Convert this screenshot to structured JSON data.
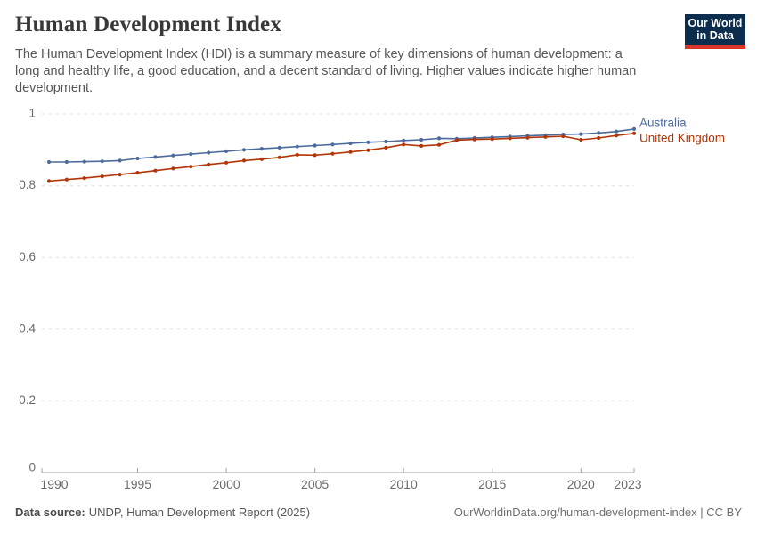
{
  "header": {
    "title": "Human Development Index",
    "subtitle": "The Human Development Index (HDI) is a summary measure of key dimensions of human development: a long and healthy life, a good education, and a decent standard of living. Higher values indicate higher human development.",
    "logo": {
      "line1": "Our World",
      "line2": "in Data",
      "bg_color": "#0d2d4e",
      "bar_color": "#dc352c"
    }
  },
  "footer": {
    "datasource_label": "Data source:",
    "datasource_text": "UNDP, Human Development Report (2025)",
    "credit": "OurWorldinData.org/human-development-index | CC BY"
  },
  "chart_data": {
    "type": "line",
    "title": "Human Development Index",
    "xlabel": "",
    "ylabel": "",
    "xlim": [
      1990,
      2023
    ],
    "ylim": [
      0,
      1
    ],
    "grid": "dashed-horizontal",
    "legend_position": "right-of-line-ends",
    "x_tick_years": [
      1990,
      1995,
      2000,
      2005,
      2010,
      2015,
      2020,
      2023
    ],
    "y_ticks": [
      0,
      0.2,
      0.4,
      0.6,
      0.8,
      1
    ],
    "x": [
      1990,
      1991,
      1992,
      1993,
      1994,
      1995,
      1996,
      1997,
      1998,
      1999,
      2000,
      2001,
      2002,
      2003,
      2004,
      2005,
      2006,
      2007,
      2008,
      2009,
      2010,
      2011,
      2012,
      2013,
      2014,
      2015,
      2016,
      2017,
      2018,
      2019,
      2020,
      2021,
      2022,
      2023
    ],
    "series": [
      {
        "name": "Australia",
        "color": "#4C6A9C",
        "values": [
          0.866,
          0.866,
          0.867,
          0.868,
          0.87,
          0.876,
          0.88,
          0.884,
          0.888,
          0.892,
          0.896,
          0.9,
          0.903,
          0.906,
          0.909,
          0.912,
          0.915,
          0.918,
          0.921,
          0.923,
          0.926,
          0.928,
          0.932,
          0.931,
          0.933,
          0.935,
          0.937,
          0.939,
          0.941,
          0.943,
          0.944,
          0.947,
          0.951,
          0.958
        ]
      },
      {
        "name": "United Kingdom",
        "color": "#B13507",
        "values": [
          0.813,
          0.817,
          0.821,
          0.826,
          0.831,
          0.836,
          0.842,
          0.848,
          0.853,
          0.859,
          0.864,
          0.87,
          0.874,
          0.879,
          0.886,
          0.885,
          0.889,
          0.894,
          0.899,
          0.906,
          0.915,
          0.911,
          0.914,
          0.927,
          0.929,
          0.93,
          0.932,
          0.934,
          0.936,
          0.938,
          0.928,
          0.933,
          0.94,
          0.946
        ]
      }
    ]
  }
}
